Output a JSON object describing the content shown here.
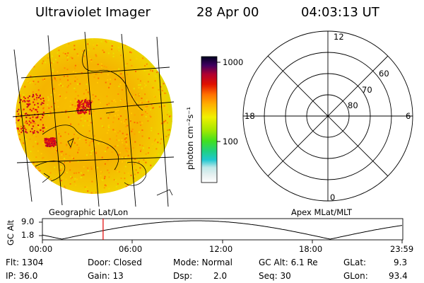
{
  "header": {
    "instrument": "Ultraviolet Imager",
    "date": "28 Apr 00",
    "time": "04:03:13 UT"
  },
  "colorbar": {
    "unit_label": "photon cm⁻²s⁻¹",
    "ticks": [
      "1000",
      "100"
    ]
  },
  "map": {
    "label": "Geographic Lat/Lon"
  },
  "polar": {
    "label": "Apex MLat/MLT",
    "mlt_labels": {
      "top": "12",
      "left": "18",
      "right": "6",
      "bottom": "0"
    },
    "lat_labels": [
      "60",
      "70",
      "80"
    ]
  },
  "altitude_plot": {
    "ylabel": "GC Alt",
    "yticks": [
      "9.0",
      "1.8"
    ],
    "xticks": [
      "00:00",
      "06:00",
      "12:00",
      "18:00",
      "23:59"
    ],
    "marker_time_hours": 4.05
  },
  "status": {
    "flt": "Flt: 1304",
    "ip": "IP: 36.0",
    "door": "Door: Closed",
    "gain": "Gain: 13",
    "mode": "Mode: Normal",
    "dsp": "Dsp:",
    "dsp_value": "2.0",
    "gc_alt": "GC Alt: 6.1 Re",
    "seq": "Seq: 30",
    "glat": "GLat:",
    "glat_value": "9.3",
    "glon": "GLon:",
    "glon_value": "93.4"
  },
  "colors": {
    "marker": "#e00000",
    "image_base": "#f2b200"
  }
}
